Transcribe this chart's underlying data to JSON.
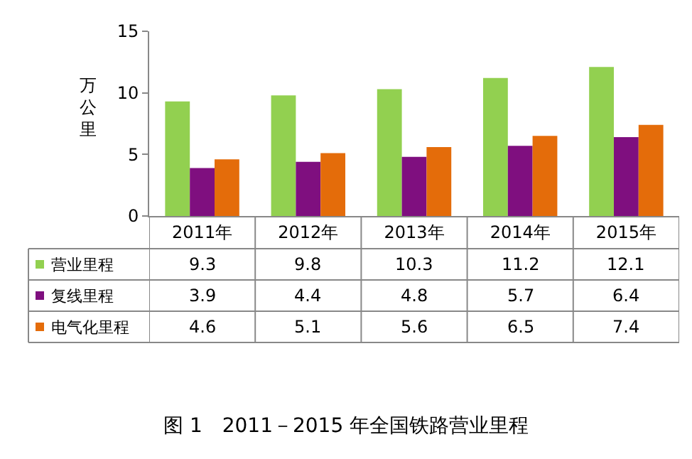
{
  "chart_data": {
    "type": "bar",
    "title": "图 1　2011－2015 年全国铁路营业里程",
    "ylabel": "万公里",
    "categories": [
      "2011年",
      "2012年",
      "2013年",
      "2014年",
      "2015年"
    ],
    "series": [
      {
        "name": "营业里程",
        "color": "#92d050",
        "values": [
          9.3,
          9.8,
          10.3,
          11.2,
          12.1
        ]
      },
      {
        "name": "复线里程",
        "color": "#7f0f7f",
        "values": [
          3.9,
          4.4,
          4.8,
          5.7,
          6.4
        ]
      },
      {
        "name": "电气化里程",
        "color": "#e46c0a",
        "values": [
          4.6,
          5.1,
          5.6,
          6.5,
          7.4
        ]
      }
    ],
    "ylim": [
      0,
      15
    ],
    "yticks": [
      0,
      5,
      10,
      15
    ],
    "grid": false,
    "legend": "bottom",
    "data_labels": true
  }
}
